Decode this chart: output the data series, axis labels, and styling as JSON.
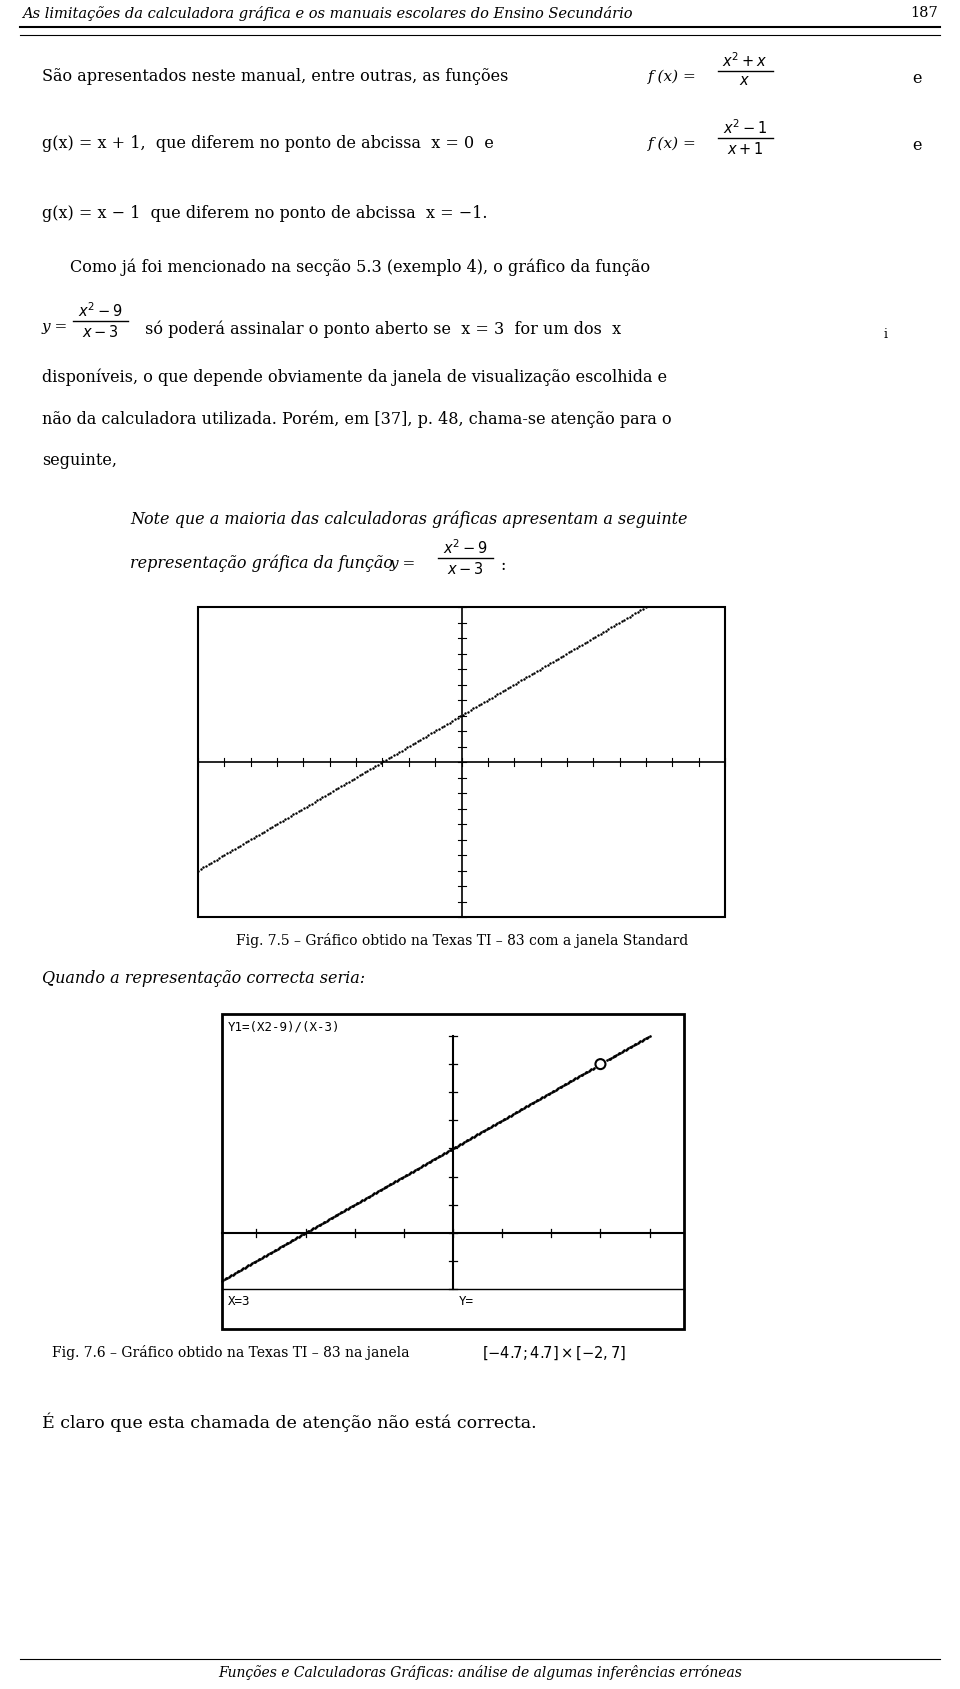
{
  "page_width": 9.6,
  "page_height": 16.9,
  "bg_color": "#ffffff",
  "header_text": "As limitações da calculadora gráfica e os manuais escolares do Ensino Secundário",
  "header_page": "187",
  "footer_text": "Funções e Calculadoras Gráficas: análise de algumas inferências erróneas",
  "fig1_caption": "Fig. 7.5 – Gráfico obtido na Texas TI – 83 com a janela Standard",
  "quando_text": "Quando a representação correcta seria:",
  "fig2_label_top": "Y1=(X2-9)/(X-3)",
  "fig2_label_x": "X=3",
  "fig2_label_y": "Y=",
  "final_line": "É claro que esta chamada de atenção não está correcta."
}
